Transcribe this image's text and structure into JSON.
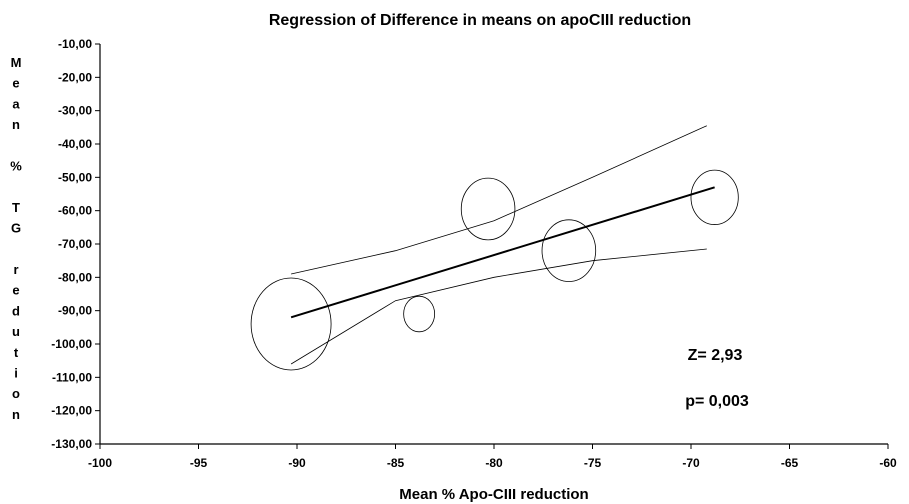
{
  "chart_data": {
    "type": "scatter",
    "title": "Regression of Difference in means on apoCIII reduction",
    "xlabel": "Mean % Apo-CIII reduction",
    "ylabel": "M e a n % T G r e d u t i o n",
    "ylabel_chars": [
      "M",
      "e",
      "a",
      "n",
      "",
      "%",
      "",
      "T",
      "G",
      "",
      "r",
      "e",
      "d",
      "u",
      "t",
      "i",
      "o",
      "n"
    ],
    "xlim": [
      -100,
      -60
    ],
    "ylim": [
      -130,
      -10
    ],
    "x_ticks": [
      "-100",
      "-95",
      "-90",
      "-85",
      "-80",
      "-75",
      "-70",
      "-65",
      "-60"
    ],
    "y_ticks": [
      "-10,00",
      "-20,00",
      "-30,00",
      "-40,00",
      "-50,00",
      "-60,00",
      "-70,00",
      "-80,00",
      "-90,00",
      "-100,00",
      "-110,00",
      "-120,00",
      "-130,00"
    ],
    "grid": false,
    "points": [
      {
        "x": -90.3,
        "y": -94.0,
        "weight": 1.0
      },
      {
        "x": -83.8,
        "y": -91.0,
        "weight": 0.15
      },
      {
        "x": -80.3,
        "y": -59.5,
        "weight": 0.45
      },
      {
        "x": -76.2,
        "y": -72.0,
        "weight": 0.45
      },
      {
        "x": -68.8,
        "y": -56.0,
        "weight": 0.35
      }
    ],
    "regression_line": {
      "x": [
        -90.3,
        -68.8
      ],
      "y": [
        -92.0,
        -53.0
      ]
    },
    "confidence_upper": {
      "x": [
        -90.3,
        -85,
        -80,
        -75,
        -69.2
      ],
      "y": [
        -79.0,
        -72.0,
        -63.0,
        -50.0,
        -34.5
      ]
    },
    "confidence_lower": {
      "x": [
        -90.3,
        -85,
        -80,
        -75,
        -69.2
      ],
      "y": [
        -106.0,
        -87.0,
        -80.0,
        -75.0,
        -71.5
      ]
    },
    "annotations": [
      "Z= 2,93",
      "p= 0,003"
    ]
  }
}
